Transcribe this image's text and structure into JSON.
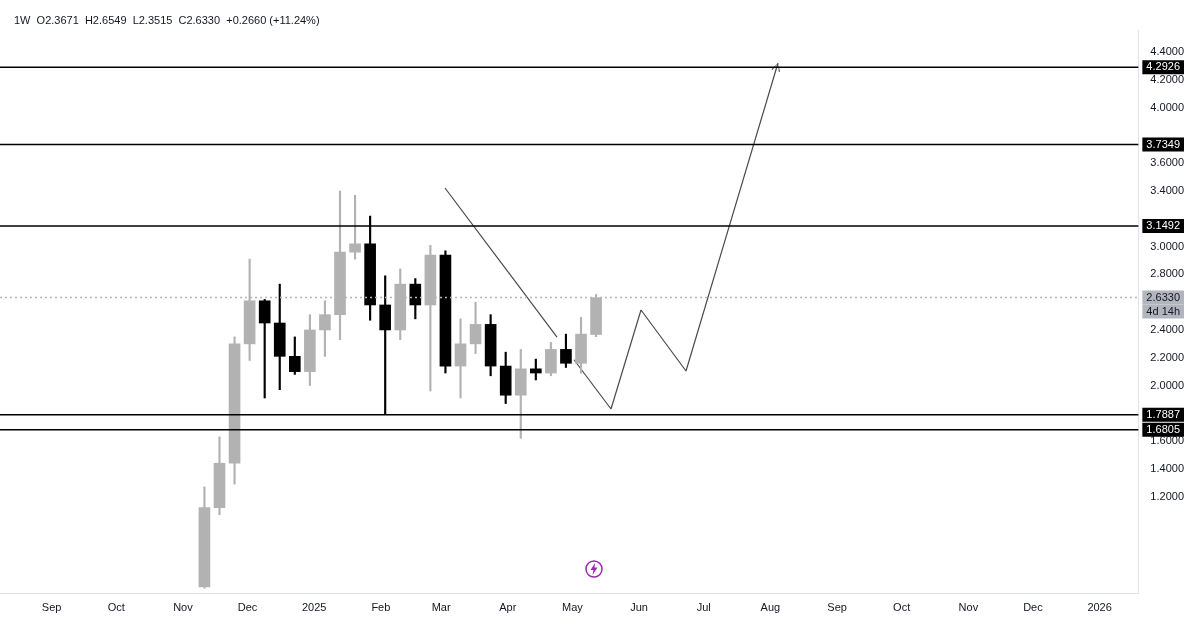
{
  "chart_data": {
    "type": "candlestick",
    "title": "1W  O2.3671  H2.6549  L2.3515  C2.6330  +0.2660 (+11.24%)",
    "x": [
      "2024-11-11",
      "2024-11-18",
      "2024-11-25",
      "2024-12-02",
      "2024-12-09",
      "2024-12-16",
      "2024-12-23",
      "2024-12-30",
      "2025-01-06",
      "2025-01-13",
      "2025-01-20",
      "2025-01-27",
      "2025-02-03",
      "2025-02-10",
      "2025-02-17",
      "2025-02-24",
      "2025-03-03",
      "2025-03-10",
      "2025-03-17",
      "2025-03-24",
      "2025-03-31",
      "2025-04-07",
      "2025-04-14",
      "2025-04-21",
      "2025-04-28",
      "2025-05-05",
      "2025-05-12"
    ],
    "ohlc": [
      [
        0.55,
        1.27,
        0.54,
        1.12
      ],
      [
        1.12,
        1.63,
        1.07,
        1.44
      ],
      [
        1.44,
        2.35,
        1.29,
        2.3
      ],
      [
        2.3,
        2.91,
        2.18,
        2.61
      ],
      [
        2.61,
        2.62,
        1.91,
        2.45
      ],
      [
        2.45,
        2.73,
        1.97,
        2.21
      ],
      [
        2.21,
        2.35,
        2.08,
        2.1
      ],
      [
        2.1,
        2.51,
        2.0,
        2.4
      ],
      [
        2.4,
        2.61,
        2.21,
        2.51
      ],
      [
        2.51,
        3.4,
        2.33,
        2.96
      ],
      [
        2.96,
        3.37,
        2.91,
        3.02
      ],
      [
        3.02,
        3.22,
        2.47,
        2.58
      ],
      [
        2.58,
        2.79,
        1.79,
        2.4
      ],
      [
        2.4,
        2.84,
        2.33,
        2.73
      ],
      [
        2.73,
        2.77,
        2.48,
        2.58
      ],
      [
        2.58,
        3.01,
        1.96,
        2.94
      ],
      [
        2.94,
        2.97,
        2.09,
        2.14
      ],
      [
        2.14,
        2.48,
        1.91,
        2.3
      ],
      [
        2.3,
        2.6,
        2.23,
        2.44
      ],
      [
        2.44,
        2.51,
        2.07,
        2.14
      ],
      [
        2.14,
        2.24,
        1.87,
        1.93
      ],
      [
        1.93,
        2.26,
        1.62,
        2.12
      ],
      [
        2.12,
        2.19,
        2.04,
        2.09
      ],
      [
        2.09,
        2.31,
        2.07,
        2.26
      ],
      [
        2.26,
        2.37,
        2.13,
        2.16
      ],
      [
        2.16,
        2.49,
        2.09,
        2.37
      ],
      [
        2.3671,
        2.6549,
        2.3515,
        2.633
      ]
    ],
    "colors": [
      "#b2b2b2",
      "#b2b2b2",
      "#b2b2b2",
      "#b2b2b2",
      "#000000",
      "#000000",
      "#000000",
      "#b2b2b2",
      "#b2b2b2",
      "#b2b2b2",
      "#b2b2b2",
      "#000000",
      "#000000",
      "#b2b2b2",
      "#000000",
      "#b2b2b2",
      "#000000",
      "#b2b2b2",
      "#b2b2b2",
      "#000000",
      "#000000",
      "#b2b2b2",
      "#000000",
      "#b2b2b2",
      "#000000",
      "#b2b2b2",
      "#b2b2b2"
    ],
    "xlim": [
      "2024-08-08",
      "2026-01-19"
    ],
    "xticks": [
      {
        "value": "2024-09-01",
        "label": "Sep"
      },
      {
        "value": "2024-10-01",
        "label": "Oct"
      },
      {
        "value": "2024-11-01",
        "label": "Nov"
      },
      {
        "value": "2024-12-01",
        "label": "Dec"
      },
      {
        "value": "2025-01-01",
        "label": "2025"
      },
      {
        "value": "2025-02-01",
        "label": "Feb"
      },
      {
        "value": "2025-03-01",
        "label": "Mar"
      },
      {
        "value": "2025-04-01",
        "label": "Apr"
      },
      {
        "value": "2025-05-01",
        "label": "May"
      },
      {
        "value": "2025-06-01",
        "label": "Jun"
      },
      {
        "value": "2025-07-01",
        "label": "Jul"
      },
      {
        "value": "2025-08-01",
        "label": "Aug"
      },
      {
        "value": "2025-09-01",
        "label": "Sep"
      },
      {
        "value": "2025-10-01",
        "label": "Oct"
      },
      {
        "value": "2025-11-01",
        "label": "Nov"
      },
      {
        "value": "2025-12-01",
        "label": "Dec"
      },
      {
        "value": "2026-01-01",
        "label": "2026"
      }
    ],
    "ylim": [
      0.5,
      4.56
    ],
    "yticks": [
      {
        "value": 1.2,
        "label": "1.2000"
      },
      {
        "value": 1.4,
        "label": "1.4000"
      },
      {
        "value": 1.6,
        "label": "1.6000"
      },
      {
        "value": 2.0,
        "label": "2.0000"
      },
      {
        "value": 2.2,
        "label": "2.2000"
      },
      {
        "value": 2.4,
        "label": "2.4000"
      },
      {
        "value": 2.8,
        "label": "2.8000"
      },
      {
        "value": 3.0,
        "label": "3.0000"
      },
      {
        "value": 3.4,
        "label": "3.4000"
      },
      {
        "value": 3.6,
        "label": "3.6000"
      },
      {
        "value": 4.0,
        "label": "4.0000"
      },
      {
        "value": 4.2,
        "label": "4.2000"
      },
      {
        "value": 4.4,
        "label": "4.4000"
      }
    ],
    "ref_lines": [
      {
        "axis": "y",
        "value": 4.2926,
        "label": "4.2926",
        "color": "#000000",
        "line_style": "solid"
      },
      {
        "axis": "y",
        "value": 3.7349,
        "label": "3.7349",
        "color": "#000000",
        "line_style": "solid"
      },
      {
        "axis": "y",
        "value": 3.1492,
        "label": "3.1492",
        "color": "#000000",
        "line_style": "solid"
      },
      {
        "axis": "y",
        "value": 2.633,
        "label": "2.6330",
        "color": "#b2b5be",
        "line_style": "dotted"
      },
      {
        "axis": "y",
        "value": 1.7887,
        "label": "1.7887",
        "color": "#000000",
        "line_style": "solid"
      },
      {
        "axis": "y",
        "value": 1.6805,
        "label": "1.6805",
        "color": "#000000",
        "line_style": "solid"
      }
    ],
    "annotations": [
      "4d 14h"
    ],
    "grid": false,
    "legend": false
  }
}
